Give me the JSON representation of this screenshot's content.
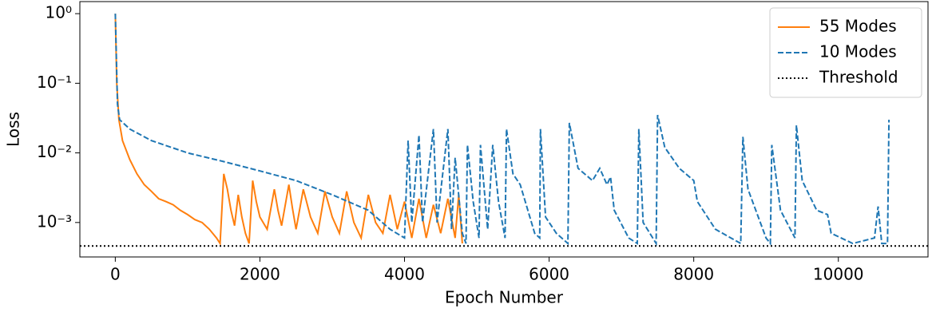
{
  "chart_data": {
    "type": "line",
    "xlabel": "Epoch Number",
    "ylabel": "Loss",
    "xlim": [
      -490,
      11240
    ],
    "ylim": [
      0.00032,
      1.49
    ],
    "yscale": "log",
    "xticks": [
      0,
      2000,
      4000,
      6000,
      8000,
      10000
    ],
    "yticks": [
      {
        "value": 0.001,
        "label": "10⁻³"
      },
      {
        "value": 0.01,
        "label": "10⁻²"
      },
      {
        "value": 0.1,
        "label": "10⁻¹"
      },
      {
        "value": 1,
        "label": "10⁰"
      }
    ],
    "legend": "upper right",
    "series": [
      {
        "name": "55 Modes",
        "color": "#ff7f0e",
        "dash": "solid",
        "x": [
          0,
          20,
          50,
          100,
          200,
          300,
          400,
          500,
          600,
          700,
          800,
          900,
          1000,
          1100,
          1200,
          1300,
          1400,
          1450,
          1500,
          1550,
          1600,
          1650,
          1700,
          1750,
          1800,
          1850,
          1900,
          1950,
          2000,
          2100,
          2200,
          2250,
          2300,
          2400,
          2450,
          2500,
          2600,
          2700,
          2800,
          2900,
          3000,
          3100,
          3200,
          3300,
          3400,
          3500,
          3600,
          3700,
          3800,
          3900,
          4000,
          4100,
          4200,
          4300,
          4400,
          4500,
          4600,
          4700,
          4750,
          4800
        ],
        "values": [
          1.0,
          0.1,
          0.03,
          0.015,
          0.008,
          0.005,
          0.0035,
          0.0028,
          0.0022,
          0.002,
          0.0018,
          0.0015,
          0.0013,
          0.0011,
          0.001,
          0.0008,
          0.0006,
          0.0005,
          0.005,
          0.003,
          0.0015,
          0.0009,
          0.0025,
          0.0012,
          0.0007,
          0.0005,
          0.004,
          0.002,
          0.0012,
          0.0008,
          0.003,
          0.0015,
          0.0009,
          0.0035,
          0.0016,
          0.0008,
          0.003,
          0.0012,
          0.0007,
          0.0028,
          0.0012,
          0.0007,
          0.0028,
          0.001,
          0.0006,
          0.0025,
          0.001,
          0.0007,
          0.0025,
          0.0008,
          0.002,
          0.0006,
          0.0022,
          0.0006,
          0.0018,
          0.0007,
          0.0022,
          0.0006,
          0.0025,
          0.0005
        ]
      },
      {
        "name": "10 Modes",
        "color": "#1f77b4",
        "dash": "dashed",
        "x": [
          0,
          30,
          60,
          200,
          500,
          1000,
          1500,
          2000,
          2500,
          3000,
          3500,
          3800,
          4000,
          4050,
          4100,
          4200,
          4250,
          4400,
          4450,
          4600,
          4650,
          4700,
          4800,
          4850,
          4870,
          4950,
          5030,
          5050,
          5150,
          5220,
          5300,
          5390,
          5410,
          5500,
          5600,
          5800,
          5870,
          5880,
          5950,
          6100,
          6260,
          6280,
          6400,
          6600,
          6700,
          6800,
          6850,
          6900,
          7100,
          7220,
          7240,
          7300,
          7480,
          7500,
          7600,
          7800,
          8000,
          8050,
          8300,
          8650,
          8680,
          8750,
          9000,
          9060,
          9080,
          9200,
          9400,
          9420,
          9500,
          9700,
          9850,
          9900,
          10200,
          10500,
          10550,
          10600,
          10680,
          10700
        ],
        "values": [
          1.0,
          0.05,
          0.03,
          0.022,
          0.015,
          0.01,
          0.0075,
          0.0055,
          0.004,
          0.0025,
          0.0015,
          0.0008,
          0.0006,
          0.015,
          0.001,
          0.018,
          0.001,
          0.022,
          0.001,
          0.022,
          0.0008,
          0.0085,
          0.0007,
          0.0005,
          0.013,
          0.002,
          0.0006,
          0.013,
          0.0008,
          0.013,
          0.002,
          0.0006,
          0.022,
          0.005,
          0.0035,
          0.0007,
          0.0006,
          0.022,
          0.0012,
          0.0007,
          0.0005,
          0.027,
          0.006,
          0.004,
          0.006,
          0.0035,
          0.0045,
          0.0015,
          0.0006,
          0.0005,
          0.022,
          0.001,
          0.0005,
          0.035,
          0.012,
          0.006,
          0.004,
          0.002,
          0.0008,
          0.0005,
          0.017,
          0.003,
          0.0006,
          0.0005,
          0.013,
          0.0015,
          0.0006,
          0.025,
          0.004,
          0.0015,
          0.0013,
          0.0007,
          0.0005,
          0.0006,
          0.0017,
          0.0005,
          0.0005,
          0.03
        ]
      }
    ],
    "threshold": {
      "name": "Threshold",
      "value": 0.00046,
      "color": "#000000"
    }
  }
}
